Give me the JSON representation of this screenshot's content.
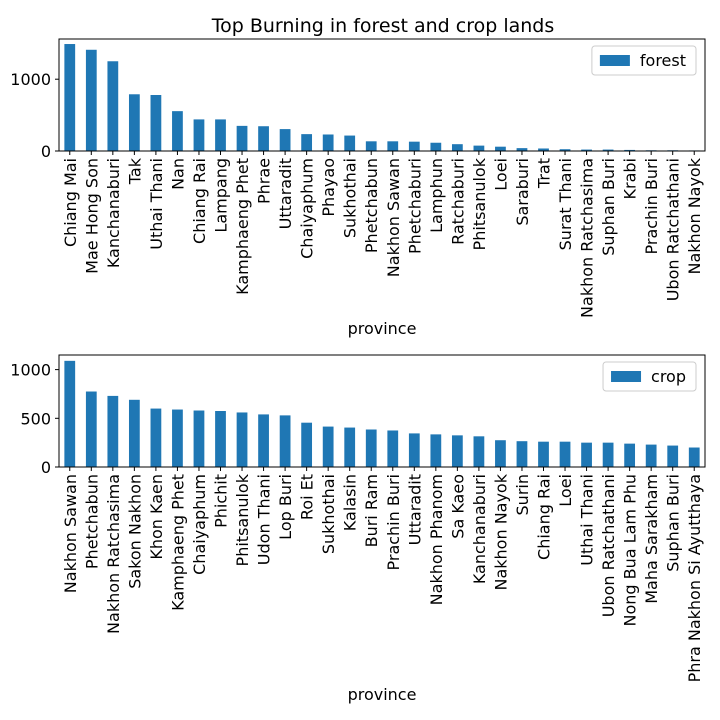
{
  "figure_title": "Top Burning in forest and crop lands",
  "colors": {
    "bar": "#1f77b4",
    "axis": "#000000",
    "legend_border": "#cccccc"
  },
  "chart_data": [
    {
      "type": "bar",
      "legend": "forest",
      "legend_placement": "top-right",
      "xlabel": "province",
      "ylabel": "",
      "ylim": [
        0,
        1560
      ],
      "yticks": [
        0,
        1000
      ],
      "categories": [
        "Chiang Mai",
        "Mae Hong Son",
        "Kanchanaburi",
        "Tak",
        "Uthai Thani",
        "Nan",
        "Chiang Rai",
        "Lampang",
        "Kamphaeng Phet",
        "Phrae",
        "Uttaradit",
        "Chaiyaphum",
        "Phayao",
        "Sukhothai",
        "Phetchabun",
        "Nakhon Sawan",
        "Phetchaburi",
        "Lamphun",
        "Ratchaburi",
        "Phitsanulok",
        "Loei",
        "Saraburi",
        "Trat",
        "Surat Thani",
        "Nakhon Ratchasima",
        "Suphan Buri",
        "Krabi",
        "Prachin Buri",
        "Ubon Ratchathani",
        "Nakhon Nayok"
      ],
      "values": [
        1490,
        1410,
        1250,
        790,
        780,
        555,
        440,
        440,
        350,
        345,
        305,
        235,
        230,
        215,
        135,
        135,
        130,
        115,
        95,
        75,
        60,
        40,
        35,
        25,
        20,
        20,
        15,
        10,
        10,
        8
      ]
    },
    {
      "type": "bar",
      "legend": "crop",
      "legend_placement": "top-right",
      "xlabel": "province",
      "ylabel": "",
      "ylim": [
        0,
        1150
      ],
      "yticks": [
        0,
        500,
        1000
      ],
      "categories": [
        "Nakhon Sawan",
        "Phetchabun",
        "Nakhon Ratchasima",
        "Sakon Nakhon",
        "Khon Kaen",
        "Kamphaeng Phet",
        "Chaiyaphum",
        "Phichit",
        "Phitsanulok",
        "Udon Thani",
        "Lop Buri",
        "Roi Et",
        "Sukhothai",
        "Kalasin",
        "Buri Ram",
        "Prachin Buri",
        "Uttaradit",
        "Nakhon Phanom",
        "Sa Kaeo",
        "Kanchanaburi",
        "Nakhon Nayok",
        "Surin",
        "Chiang Rai",
        "Loei",
        "Uthai Thani",
        "Ubon Ratchathani",
        "Nong Bua Lam Phu",
        "Maha Sarakham",
        "Suphan Buri",
        "Phra Nakhon Si Ayutthaya"
      ],
      "values": [
        1090,
        775,
        730,
        690,
        600,
        590,
        580,
        575,
        560,
        540,
        530,
        455,
        415,
        405,
        385,
        375,
        345,
        335,
        325,
        315,
        275,
        265,
        260,
        260,
        250,
        250,
        240,
        230,
        220,
        200
      ]
    }
  ]
}
